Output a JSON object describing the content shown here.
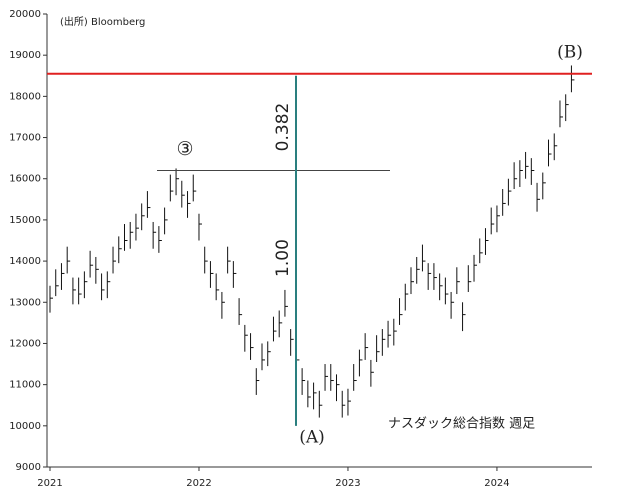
{
  "chart_data": {
    "type": "ohlc",
    "source": "(出所)  Bloomberg",
    "label": "ナスダック総合指数 週足",
    "annotations": {
      "b": "(B)",
      "a": "(A)",
      "three": "③",
      "fib382": "0.382",
      "fib100": "1.00"
    },
    "reference_lines": [
      {
        "y": 18550,
        "color": "#e02020"
      },
      {
        "y": 16200,
        "color": "#444444"
      }
    ],
    "vertical_line": {
      "y_range": [
        10000,
        18500
      ],
      "color": "#2a7f7f"
    },
    "color": "#111111",
    "ylim": [
      9000,
      20000
    ],
    "yticks": [
      9000,
      10000,
      11000,
      12000,
      13000,
      14000,
      15000,
      16000,
      17000,
      18000,
      19000,
      20000
    ],
    "categories": [
      "2021",
      null,
      null,
      null,
      null,
      null,
      null,
      null,
      null,
      null,
      null,
      null,
      null,
      null,
      null,
      null,
      null,
      null,
      null,
      null,
      null,
      null,
      null,
      null,
      null,
      null,
      "2022",
      null,
      null,
      null,
      null,
      null,
      null,
      null,
      null,
      null,
      null,
      null,
      null,
      null,
      null,
      null,
      null,
      null,
      null,
      null,
      null,
      null,
      null,
      null,
      null,
      null,
      "2023",
      null,
      null,
      null,
      null,
      null,
      null,
      null,
      null,
      null,
      null,
      null,
      null,
      null,
      null,
      null,
      null,
      null,
      null,
      null,
      null,
      null,
      null,
      null,
      null,
      null,
      "2024",
      null,
      null,
      null,
      null,
      null,
      null,
      null,
      null,
      null,
      null,
      null,
      null,
      null
    ],
    "high": [
      13400,
      13800,
      13950,
      14350,
      13600,
      13600,
      13750,
      14250,
      14100,
      13700,
      13750,
      14350,
      14600,
      14900,
      14950,
      15150,
      15400,
      15700,
      14950,
      14850,
      15300,
      16100,
      16250,
      15950,
      15700,
      16100,
      15150,
      14350,
      14000,
      13700,
      13250,
      14350,
      14000,
      13100,
      12450,
      12250,
      11400,
      12000,
      12050,
      12650,
      12800,
      13300,
      12350,
      11950,
      11400,
      11100,
      11050,
      10850,
      11500,
      11500,
      11250,
      10850,
      10900,
      11500,
      11850,
      12250,
      11600,
      12200,
      12350,
      12550,
      12600,
      13100,
      13450,
      13850,
      14100,
      14400,
      13950,
      13950,
      13700,
      13600,
      13250,
      13850,
      13000,
      13900,
      14150,
      14550,
      14800,
      15300,
      15350,
      15750,
      16000,
      16400,
      16450,
      16650,
      16500,
      15900,
      16150,
      16950,
      17100,
      17900,
      18050,
      18750
    ],
    "low": [
      12750,
      13150,
      13300,
      13700,
      12950,
      12950,
      13100,
      13600,
      13450,
      13050,
      13100,
      13700,
      13950,
      14250,
      14300,
      14500,
      14750,
      15050,
      14300,
      14200,
      14650,
      15450,
      15600,
      15300,
      15050,
      15450,
      14500,
      13700,
      13350,
      13050,
      12600,
      13700,
      13350,
      12450,
      11800,
      11600,
      10750,
      11350,
      11450,
      12050,
      12150,
      12650,
      11700,
      11300,
      10750,
      10450,
      10400,
      10200,
      10850,
      10850,
      10600,
      10200,
      10250,
      10850,
      11200,
      11600,
      10950,
      11550,
      11700,
      11900,
      11950,
      12450,
      12800,
      13200,
      13450,
      13750,
      13300,
      13300,
      13050,
      12950,
      12600,
      13200,
      12300,
      13250,
      13500,
      13950,
      14150,
      14650,
      14700,
      15100,
      15350,
      15750,
      15800,
      16000,
      15850,
      15200,
      15500,
      16300,
      16450,
      17250,
      17400,
      18100
    ],
    "close": [
      13100,
      13400,
      13700,
      14000,
      13300,
      13200,
      13500,
      13900,
      13800,
      13300,
      13500,
      14000,
      14300,
      14500,
      14700,
      14800,
      15100,
      15300,
      14700,
      14500,
      15000,
      15700,
      16000,
      15600,
      15400,
      15700,
      14900,
      14000,
      13700,
      13300,
      13000,
      14000,
      13700,
      12700,
      12200,
      11900,
      11100,
      11600,
      11800,
      12300,
      12500,
      12900,
      12100,
      11600,
      11100,
      10700,
      10800,
      10500,
      11200,
      11100,
      11000,
      10500,
      10600,
      11100,
      11600,
      11900,
      11300,
      11800,
      12100,
      12200,
      12300,
      12700,
      13200,
      13500,
      13800,
      14000,
      13700,
      13600,
      13400,
      13200,
      13000,
      13500,
      12700,
      13500,
      13900,
      14200,
      14500,
      14900,
      15100,
      15400,
      15700,
      16000,
      16200,
      16300,
      16200,
      15500,
      15900,
      16600,
      16800,
      17500,
      17800,
      18400
    ]
  }
}
